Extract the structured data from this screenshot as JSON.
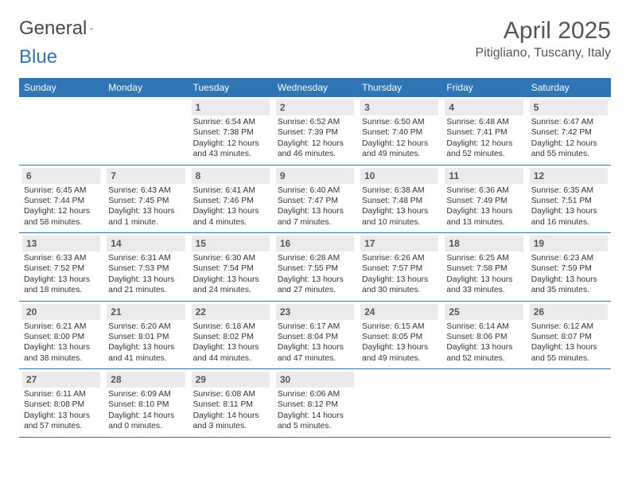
{
  "logo": {
    "part1": "General",
    "part2": "Blue"
  },
  "title": "April 2025",
  "location": "Pitigliano, Tuscany, Italy",
  "header_bg": "#2e75b6",
  "daynum_bg": "#ebebeb",
  "border_color": "#2e75b6",
  "days_of_week": [
    "Sunday",
    "Monday",
    "Tuesday",
    "Wednesday",
    "Thursday",
    "Friday",
    "Saturday"
  ],
  "weeks": [
    [
      null,
      null,
      {
        "n": "1",
        "sr": "6:54 AM",
        "ss": "7:38 PM",
        "dl": "12 hours and 43 minutes."
      },
      {
        "n": "2",
        "sr": "6:52 AM",
        "ss": "7:39 PM",
        "dl": "12 hours and 46 minutes."
      },
      {
        "n": "3",
        "sr": "6:50 AM",
        "ss": "7:40 PM",
        "dl": "12 hours and 49 minutes."
      },
      {
        "n": "4",
        "sr": "6:48 AM",
        "ss": "7:41 PM",
        "dl": "12 hours and 52 minutes."
      },
      {
        "n": "5",
        "sr": "6:47 AM",
        "ss": "7:42 PM",
        "dl": "12 hours and 55 minutes."
      }
    ],
    [
      {
        "n": "6",
        "sr": "6:45 AM",
        "ss": "7:44 PM",
        "dl": "12 hours and 58 minutes."
      },
      {
        "n": "7",
        "sr": "6:43 AM",
        "ss": "7:45 PM",
        "dl": "13 hours and 1 minute."
      },
      {
        "n": "8",
        "sr": "6:41 AM",
        "ss": "7:46 PM",
        "dl": "13 hours and 4 minutes."
      },
      {
        "n": "9",
        "sr": "6:40 AM",
        "ss": "7:47 PM",
        "dl": "13 hours and 7 minutes."
      },
      {
        "n": "10",
        "sr": "6:38 AM",
        "ss": "7:48 PM",
        "dl": "13 hours and 10 minutes."
      },
      {
        "n": "11",
        "sr": "6:36 AM",
        "ss": "7:49 PM",
        "dl": "13 hours and 13 minutes."
      },
      {
        "n": "12",
        "sr": "6:35 AM",
        "ss": "7:51 PM",
        "dl": "13 hours and 16 minutes."
      }
    ],
    [
      {
        "n": "13",
        "sr": "6:33 AM",
        "ss": "7:52 PM",
        "dl": "13 hours and 18 minutes."
      },
      {
        "n": "14",
        "sr": "6:31 AM",
        "ss": "7:53 PM",
        "dl": "13 hours and 21 minutes."
      },
      {
        "n": "15",
        "sr": "6:30 AM",
        "ss": "7:54 PM",
        "dl": "13 hours and 24 minutes."
      },
      {
        "n": "16",
        "sr": "6:28 AM",
        "ss": "7:55 PM",
        "dl": "13 hours and 27 minutes."
      },
      {
        "n": "17",
        "sr": "6:26 AM",
        "ss": "7:57 PM",
        "dl": "13 hours and 30 minutes."
      },
      {
        "n": "18",
        "sr": "6:25 AM",
        "ss": "7:58 PM",
        "dl": "13 hours and 33 minutes."
      },
      {
        "n": "19",
        "sr": "6:23 AM",
        "ss": "7:59 PM",
        "dl": "13 hours and 35 minutes."
      }
    ],
    [
      {
        "n": "20",
        "sr": "6:21 AM",
        "ss": "8:00 PM",
        "dl": "13 hours and 38 minutes."
      },
      {
        "n": "21",
        "sr": "6:20 AM",
        "ss": "8:01 PM",
        "dl": "13 hours and 41 minutes."
      },
      {
        "n": "22",
        "sr": "6:18 AM",
        "ss": "8:02 PM",
        "dl": "13 hours and 44 minutes."
      },
      {
        "n": "23",
        "sr": "6:17 AM",
        "ss": "8:04 PM",
        "dl": "13 hours and 47 minutes."
      },
      {
        "n": "24",
        "sr": "6:15 AM",
        "ss": "8:05 PM",
        "dl": "13 hours and 49 minutes."
      },
      {
        "n": "25",
        "sr": "6:14 AM",
        "ss": "8:06 PM",
        "dl": "13 hours and 52 minutes."
      },
      {
        "n": "26",
        "sr": "6:12 AM",
        "ss": "8:07 PM",
        "dl": "13 hours and 55 minutes."
      }
    ],
    [
      {
        "n": "27",
        "sr": "6:11 AM",
        "ss": "8:08 PM",
        "dl": "13 hours and 57 minutes."
      },
      {
        "n": "28",
        "sr": "6:09 AM",
        "ss": "8:10 PM",
        "dl": "14 hours and 0 minutes."
      },
      {
        "n": "29",
        "sr": "6:08 AM",
        "ss": "8:11 PM",
        "dl": "14 hours and 3 minutes."
      },
      {
        "n": "30",
        "sr": "6:06 AM",
        "ss": "8:12 PM",
        "dl": "14 hours and 5 minutes."
      },
      null,
      null,
      null
    ]
  ],
  "labels": {
    "sunrise": "Sunrise:",
    "sunset": "Sunset:",
    "daylight": "Daylight:"
  }
}
